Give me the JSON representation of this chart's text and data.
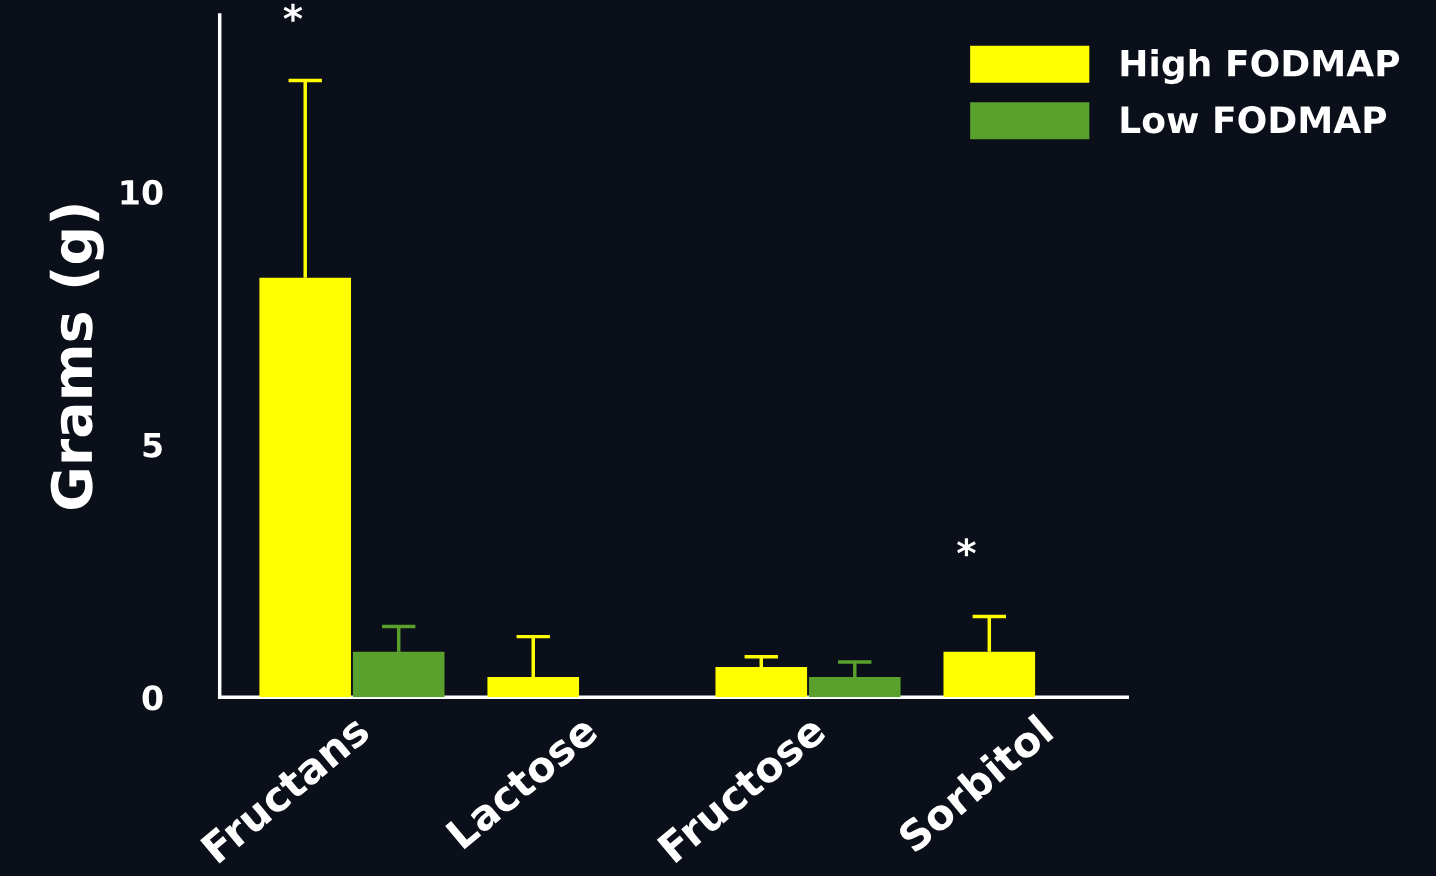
{
  "chart_data": {
    "type": "bar",
    "ylabel": "Grams (g)",
    "categories": [
      "Fructans",
      "Lactose",
      "Fructose",
      "Sorbitol"
    ],
    "series": [
      {
        "name": "High FODMAP",
        "color": "#ffff00",
        "values": [
          8.3,
          0.4,
          0.6,
          0.9
        ],
        "errors": [
          [
            8.3,
            12.2
          ],
          [
            0.4,
            1.2
          ],
          [
            0.6,
            0.8
          ],
          [
            0.9,
            1.6
          ]
        ]
      },
      {
        "name": "Low FODMAP",
        "color": "#5aa02c",
        "values": [
          0.9,
          0,
          0.4,
          0
        ],
        "errors": [
          [
            0.9,
            1.4
          ],
          null,
          [
            0.4,
            0.7
          ],
          null
        ]
      }
    ],
    "ylim": [
      0,
      13.5
    ],
    "yticks": [
      0,
      5,
      10
    ],
    "annotations": [
      "*",
      "*"
    ],
    "legend": "top right",
    "grid": false
  }
}
